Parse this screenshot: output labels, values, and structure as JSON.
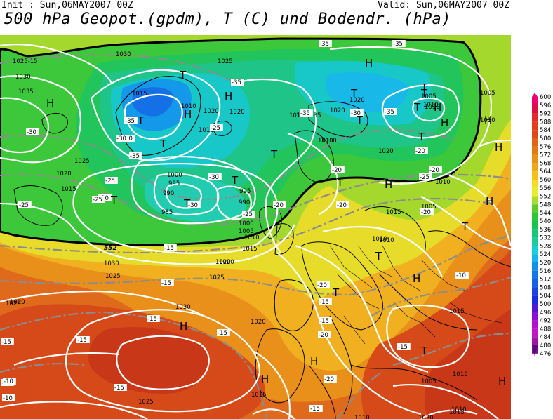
{
  "header": {
    "init": "Init : Sun,06MAY2007 00Z",
    "valid": "Valid: Sun,06MAY2007 00Z",
    "title": "500 hPa Geopot.(gpdm), T (C) und Bodendr. (hPa)"
  },
  "colors": {
    "land": "#000000",
    "isobar": "#ffffff",
    "isotherm": "#8c8c8c",
    "contour_552": "#000000"
  },
  "scale": {
    "values": [
      "600",
      "596",
      "592",
      "588",
      "584",
      "580",
      "576",
      "572",
      "568",
      "564",
      "560",
      "556",
      "552",
      "548",
      "544",
      "540",
      "536",
      "532",
      "528",
      "524",
      "520",
      "516",
      "512",
      "508",
      "504",
      "500",
      "496",
      "492",
      "488",
      "484",
      "480",
      "476"
    ],
    "colors": [
      "#ef0070",
      "#d81040",
      "#e82828",
      "#e43c1e",
      "#dc4818",
      "#e06418",
      "#e27a14",
      "#e89018",
      "#eea818",
      "#f4c01c",
      "#f4dc28",
      "#e6ec30",
      "#aadc2c",
      "#5ccc2c",
      "#28c838",
      "#18c450",
      "#18c878",
      "#1ccc9c",
      "#18d0d8",
      "#14b4ec",
      "#1290ea",
      "#1278e8",
      "#1660e6",
      "#1a44e2",
      "#1e2ae0",
      "#5018d0",
      "#8812d0",
      "#b012d0",
      "#c414c8",
      "#a014a8",
      "#7a1090",
      "#560c76"
    ]
  },
  "map_labels": {
    "highs": [
      "H",
      "H",
      "H",
      "H",
      "H",
      "H",
      "H",
      "H",
      "H",
      "H",
      "H",
      "H",
      "H",
      "H",
      "H"
    ],
    "lows": [
      "T",
      "T",
      "T",
      "T",
      "T",
      "T",
      "T",
      "T",
      "T",
      "T",
      "T",
      "T",
      "T",
      "T",
      "T",
      "T",
      "T",
      "T"
    ],
    "isobar_labels": [
      "1030",
      "1025-15",
      "1030",
      "1035",
      "1015",
      "1010",
      "1020",
      "1025",
      "1020",
      "1015",
      "1025",
      "1020",
      "1030",
      "1020",
      "1010",
      "1015",
      "1020",
      "1005",
      "1010",
      "1010-35",
      "1010",
      "1020",
      "1010",
      "1000",
      "995",
      "990",
      "985",
      "995",
      "990",
      "1000",
      "1005",
      "1010",
      "1015",
      "1020",
      "1025",
      "1015",
      "1020",
      "1025",
      "1030",
      "1005",
      "1010",
      "1015",
      "1010",
      "1020",
      "1005",
      "1015",
      "1010",
      "1020",
      "1020",
      "1015",
      "1010",
      "1025",
      "1005",
      "1010",
      "1015",
      "1020",
      "1010",
      "1010"
    ],
    "temp_labels": [
      "-15",
      "-15",
      "-10",
      "-30",
      "-35",
      "-35",
      "-35",
      "-35",
      "-35",
      "-30",
      "-35",
      "-30",
      "-25",
      "-30",
      "-35",
      "-30",
      "-25",
      "-25",
      "-20",
      "-25",
      "-30",
      "-25",
      "-20",
      "-20",
      "-25",
      "-20",
      "-20",
      "-20",
      "-20",
      "-15",
      "-15",
      "-15",
      "-15",
      "-15",
      "-10",
      "-15",
      "-20",
      "-20",
      "-15",
      "-15",
      "-10",
      "-15",
      "-10",
      "-20",
      "-15",
      "-10"
    ],
    "contour_label": "552"
  }
}
